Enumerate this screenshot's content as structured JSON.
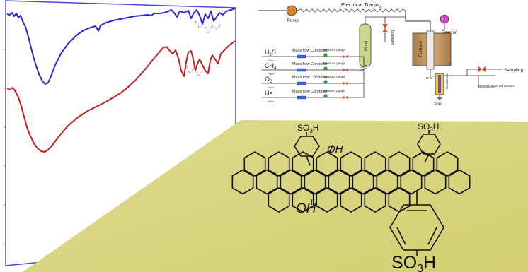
{
  "flow_diagram": {
    "top_label": "Electrical Tracing",
    "pump_label": "Pump",
    "tc_label": "TC",
    "reactor_label": "Reactor",
    "mixer_label": "Mixer",
    "furnace_label": "Furnace",
    "sampling_vertical": "Sampling",
    "sampling_right": "Sampling",
    "neutralization_label": "Neutralization with NaOH",
    "cw_label": "C.W.",
    "condenser_label": "Condenser",
    "drain_label": "Drain",
    "gas_lines": [
      {
        "gas_main": "H",
        "gas_sub": "2",
        "gas_tail": "S",
        "controller": "Mass flow Controller",
        "gauge": "Pressure gauge",
        "filter": "Filter"
      },
      {
        "gas_main": "CH",
        "gas_sub": "4",
        "gas_tail": "",
        "controller": "Mass flow Controller",
        "gauge": "Pressure gauge",
        "filter": "Filter"
      },
      {
        "gas_main": "O",
        "gas_sub": "2",
        "gas_tail": "",
        "controller": "Mass flow Controller",
        "gauge": "Pressure gauge",
        "filter": "Filter"
      },
      {
        "gas_main": "He",
        "gas_sub": "",
        "gas_tail": "",
        "controller": "Mass flow Controller",
        "gauge": "Pressure gauge",
        "filter": "Filter"
      }
    ]
  },
  "molecule": {
    "top_left_group": {
      "main": "SO",
      "sub": "3",
      "tail": "H"
    },
    "top_right_group": {
      "main": "SO",
      "sub": "3",
      "tail": "H"
    },
    "bottom_right_group": {
      "main": "SO",
      "sub": "3",
      "tail": "H"
    },
    "oh_top": "OH",
    "oh_bottom": "OH"
  },
  "colors": {
    "spectrum_blue": "#2b2bd6",
    "spectrum_red": "#c81e1e",
    "spectrum_frame": "#4a4ad0",
    "panel_yellow": "#dbd883",
    "pump_orange": "#d9842a",
    "tc_magenta": "#c848c8",
    "mixer_green": "#c9d98a",
    "furnace_brown": "#c89a64",
    "controller_blue": "#2f6fd6",
    "gauge_green": "#2e9a3a",
    "valve_red": "#d24a2a"
  }
}
